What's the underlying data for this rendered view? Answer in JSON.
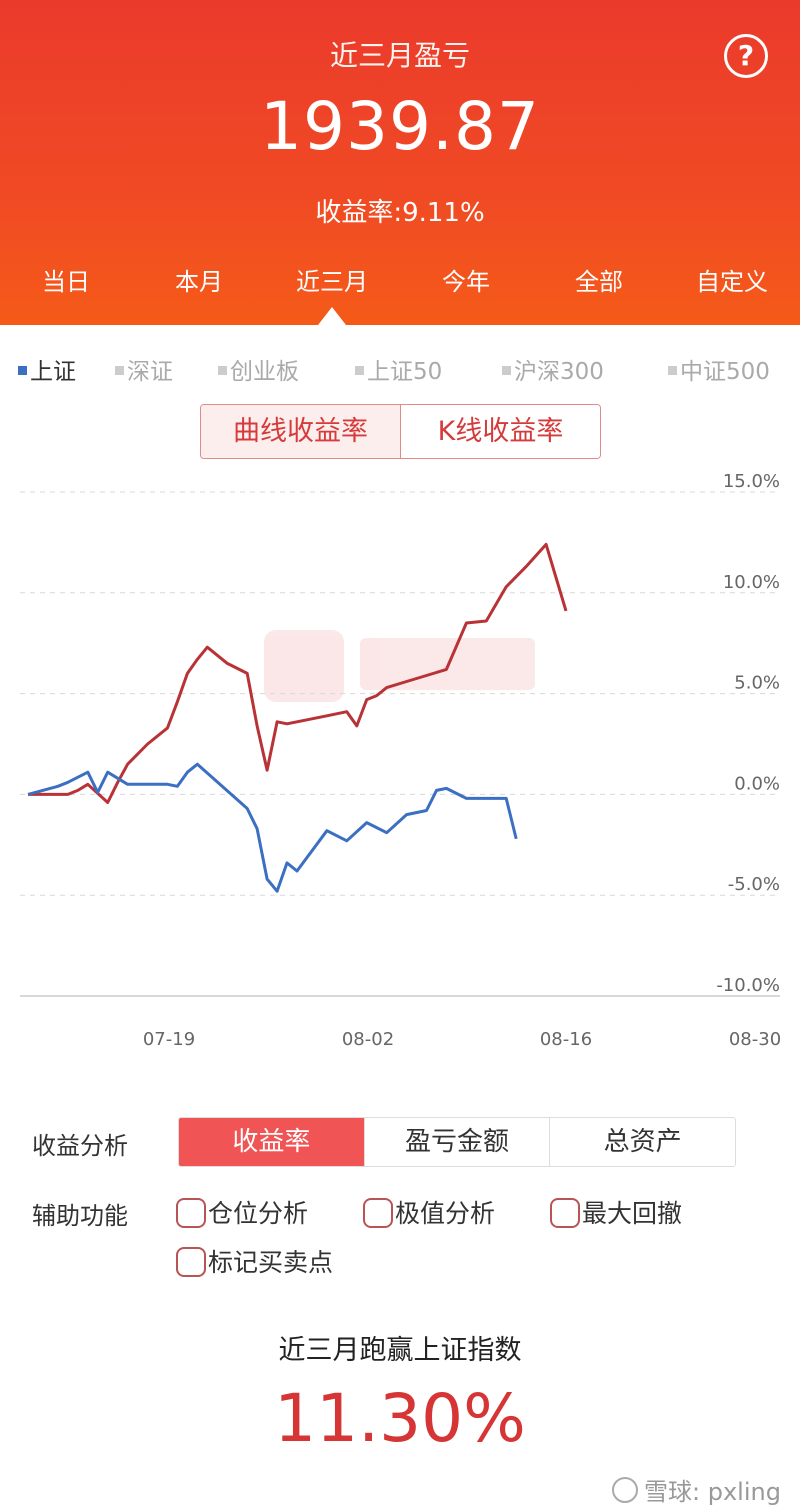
{
  "header": {
    "title": "近三月盈亏",
    "amount": "1939.87",
    "rate_label": "收益率:",
    "rate_value": "9.11%",
    "help_icon": "question-circle-icon",
    "tabs": [
      "当日",
      "本月",
      "近三月",
      "今年",
      "全部",
      "自定义"
    ],
    "active_tab": "近三月"
  },
  "indices": {
    "items": [
      "上证",
      "深证",
      "创业板",
      "上证50",
      "沪深300",
      "中证500"
    ],
    "active": "上证",
    "active_color": "#3b6fc2"
  },
  "toggle": {
    "curve": "曲线收益率",
    "kline": "K线收益率"
  },
  "chart_data": {
    "type": "line",
    "yticks": [
      "15.0%",
      "10.0%",
      "5.0%",
      "0.0%",
      "-5.0%",
      "-10.0%"
    ],
    "ylim": [
      -10,
      15
    ],
    "xticks": [
      "07-19",
      "08-02",
      "08-16",
      "08-30"
    ],
    "series": [
      {
        "name": "",
        "color": "#b83236",
        "values": [
          0,
          0,
          0,
          0.2,
          0.5,
          -0.4,
          0.6,
          1.5,
          2.5,
          3.3,
          4.6,
          6.0,
          6.7,
          7.3,
          6.9,
          6.5,
          6.0,
          3.4,
          1.2,
          3.6,
          3.5,
          3.7,
          3.9,
          4.1,
          3.4,
          4.7,
          4.9,
          5.3,
          5.6,
          5.9,
          6.2,
          8.5,
          8.6,
          10.3,
          11.3,
          12.4,
          9.1
        ],
        "x": [
          0,
          1,
          2,
          2.5,
          3,
          4,
          4.5,
          5,
          6,
          7,
          7.5,
          8,
          8.5,
          9,
          9.5,
          10,
          11,
          11.5,
          12,
          12.5,
          13,
          14,
          15,
          16,
          16.5,
          17,
          17.5,
          18,
          19,
          20,
          21,
          22,
          23,
          24,
          25,
          26,
          27
        ]
      },
      {
        "name": "上证",
        "color": "#3b6fc2",
        "values": [
          0,
          0.4,
          0.6,
          1.1,
          0.1,
          1.1,
          0.5,
          0.5,
          0.5,
          0.4,
          1.1,
          1.5,
          -0.7,
          -1.7,
          -4.2,
          -4.8,
          -3.4,
          -3.8,
          -1.8,
          -2.3,
          -1.4,
          -1.9,
          -1.0,
          -0.8,
          0.2,
          0.3,
          -0.2,
          -0.2,
          -2.2
        ],
        "x": [
          0,
          1.5,
          2,
          3,
          3.5,
          4,
          5,
          6,
          7,
          7.5,
          8,
          8.5,
          11,
          11.5,
          12,
          12.5,
          13,
          13.5,
          15,
          16,
          17,
          18,
          19,
          20,
          20.5,
          21,
          22,
          24,
          24.5
        ]
      }
    ]
  },
  "analysis": {
    "label": "收益分析",
    "options": [
      "收益率",
      "盈亏金额",
      "总资产"
    ],
    "active": "收益率",
    "aux_label": "辅助功能",
    "aux_options": [
      "仓位分析",
      "极值分析",
      "最大回撤",
      "标记买卖点"
    ]
  },
  "beat": {
    "label": "近三月跑赢上证指数",
    "value": "11.30%"
  },
  "watermark": "雪球: pxling"
}
